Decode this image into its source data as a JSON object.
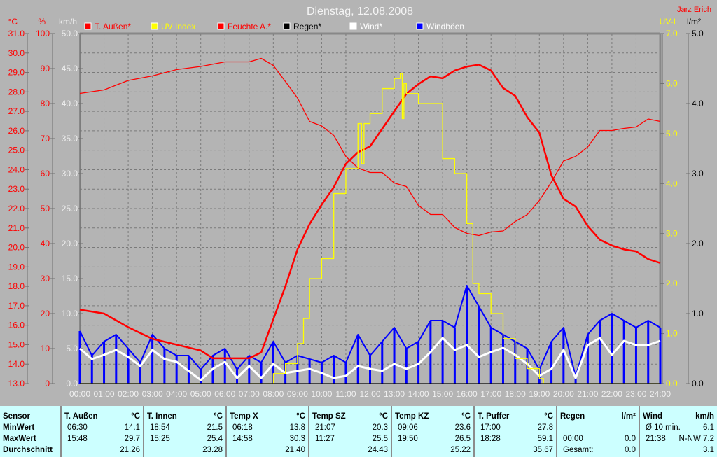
{
  "header": {
    "title": "Dienstag, 12.08.2008",
    "author": "Jarz Erich"
  },
  "legend": [
    {
      "label": "T. Außen*",
      "color": "#ff0000",
      "text_color": "#ff0000"
    },
    {
      "label": "UV Index",
      "color": "#ffff00",
      "text_color": "#ffff00"
    },
    {
      "label": "Feuchte A.*",
      "color": "#ff0000",
      "text_color": "#ff0000"
    },
    {
      "label": "Regen*",
      "color": "#000000",
      "text_color": "#000000"
    },
    {
      "label": "Wind*",
      "color": "#ffffff",
      "text_color": "#ffffff"
    },
    {
      "label": "Windböen",
      "color": "#0000ff",
      "text_color": "#ffffff"
    }
  ],
  "chart_data": {
    "type": "line",
    "title": "Dienstag, 12.08.2008",
    "grid": true,
    "legend_position": "top",
    "x_ticks": [
      "00:00",
      "01:00",
      "02:00",
      "03:00",
      "04:00",
      "05:00",
      "06:00",
      "07:00",
      "08:00",
      "09:00",
      "10:00",
      "11:00",
      "12:00",
      "13:00",
      "14:00",
      "15:00",
      "16:00",
      "17:00",
      "18:00",
      "19:00",
      "20:00",
      "21:00",
      "22:00",
      "23:00",
      "24:00"
    ],
    "axes": {
      "temp": {
        "unit": "°C",
        "range": [
          13,
          31
        ],
        "step": 1,
        "color": "#ff0000",
        "ticks": [
          "13.0",
          "14.0",
          "15.0",
          "16.0",
          "17.0",
          "18.0",
          "19.0",
          "20.0",
          "21.0",
          "22.0",
          "23.0",
          "24.0",
          "25.0",
          "26.0",
          "27.0",
          "28.0",
          "29.0",
          "30.0",
          "31.0"
        ]
      },
      "humidity": {
        "unit": "%",
        "range": [
          0,
          100
        ],
        "step": 10,
        "color": "#ff0000",
        "ticks": [
          "0",
          "10",
          "20",
          "30",
          "40",
          "50",
          "60",
          "70",
          "80",
          "90",
          "100"
        ]
      },
      "wind": {
        "unit": "km/h",
        "range": [
          0,
          50
        ],
        "step": 5,
        "color": "#f0f0f0",
        "ticks": [
          "0.0",
          "5.0",
          "10.0",
          "15.0",
          "20.0",
          "25.0",
          "30.0",
          "35.0",
          "40.0",
          "45.0",
          "50.0"
        ]
      },
      "uv": {
        "unit": "UV-I",
        "range": [
          0,
          7
        ],
        "step": 1,
        "color": "#ffff00",
        "ticks": [
          "0.0",
          "1.0",
          "2.0",
          "3.0",
          "4.0",
          "5.0",
          "6.0",
          "7.0"
        ]
      },
      "rain": {
        "unit": "l/m²",
        "range": [
          0,
          5
        ],
        "step": 1,
        "color": "#000000",
        "ticks": [
          "0.0",
          "1.0",
          "2.0",
          "3.0",
          "4.0",
          "5.0"
        ]
      }
    },
    "series": [
      {
        "name": "T. Außen*",
        "axis": "temp",
        "color": "#ff0000",
        "x": [
          0,
          1,
          2,
          3,
          4,
          5,
          5.5,
          6,
          7,
          7.5,
          8,
          8.5,
          9,
          9.5,
          10,
          10.5,
          11,
          11.5,
          12,
          12.5,
          13,
          13.5,
          14,
          14.5,
          15,
          15.5,
          16,
          16.5,
          17,
          17.5,
          18,
          18.5,
          19,
          19.5,
          20,
          20.5,
          21,
          21.5,
          22,
          22.5,
          23,
          23.5,
          24
        ],
        "y": [
          16.8,
          16.6,
          15.9,
          15.3,
          15.0,
          14.7,
          14.3,
          14.3,
          14.3,
          14.6,
          16.3,
          18.0,
          19.9,
          21.2,
          22.2,
          23.1,
          24.3,
          24.9,
          25.2,
          26.1,
          27.0,
          27.9,
          28.4,
          28.8,
          28.7,
          29.1,
          29.3,
          29.4,
          29.1,
          28.2,
          27.8,
          26.7,
          25.9,
          23.7,
          22.5,
          22.1,
          21.1,
          20.4,
          20.1,
          19.9,
          19.8,
          19.4,
          19.2
        ]
      },
      {
        "name": "UV Index",
        "axis": "uv",
        "color": "#ffff00",
        "step": true,
        "x": [
          0,
          7.5,
          8,
          8.5,
          9,
          9.25,
          9.5,
          10,
          10.5,
          11,
          11.5,
          11.65,
          11.75,
          12,
          12.5,
          13,
          13.25,
          13.33,
          13.4,
          13.5,
          14,
          14.5,
          15,
          15.5,
          16,
          16.25,
          16.5,
          17,
          17.5,
          18,
          18.5,
          19,
          19.17,
          24
        ],
        "y": [
          0,
          0,
          0.2,
          0.4,
          0.8,
          1.3,
          2.1,
          2.5,
          3.8,
          4.3,
          5.2,
          4.4,
          5.2,
          5.4,
          5.9,
          6.1,
          6.2,
          5.3,
          6.0,
          5.8,
          5.6,
          5.6,
          4.5,
          4.2,
          3.2,
          2.0,
          1.8,
          1.4,
          0.9,
          0.5,
          0.3,
          0.1,
          0,
          0
        ]
      },
      {
        "name": "Feuchte A.*",
        "axis": "humidity",
        "color": "#ff0000",
        "x": [
          0,
          1,
          2,
          3,
          4,
          5,
          6,
          7,
          7.5,
          8,
          8.5,
          9,
          9.5,
          10,
          10.5,
          11,
          11.5,
          12,
          12.5,
          13,
          13.5,
          14,
          14.5,
          15,
          15.5,
          16,
          16.5,
          17,
          17.5,
          18,
          18.5,
          19,
          19.5,
          20,
          20.5,
          21,
          21.5,
          22,
          22.5,
          23,
          23.5,
          24
        ],
        "y": [
          82.9,
          83.9,
          86.6,
          87.9,
          89.7,
          90.6,
          91.9,
          91.9,
          92.9,
          90.9,
          86.3,
          81.6,
          74.9,
          73.6,
          70.9,
          64.9,
          61.6,
          60.3,
          60.3,
          57.3,
          56.3,
          50.9,
          48.3,
          48.3,
          44.6,
          42.9,
          42.3,
          43.3,
          43.6,
          46.3,
          48.3,
          52.3,
          57.6,
          63.6,
          64.9,
          67.6,
          72.3,
          72.3,
          72.9,
          73.3,
          75.6,
          74.9
        ]
      },
      {
        "name": "Regen*",
        "axis": "rain",
        "color": "#000000",
        "x": [
          0,
          24
        ],
        "y": [
          0,
          0
        ]
      },
      {
        "name": "Wind*",
        "axis": "wind",
        "color": "#ffffff",
        "x": [
          0,
          0.5,
          1,
          1.5,
          2,
          2.5,
          3,
          3.5,
          4,
          4.5,
          5,
          5.5,
          6,
          6.5,
          7,
          7.5,
          8,
          8.5,
          9,
          9.5,
          10,
          10.5,
          11,
          11.5,
          12,
          12.5,
          13,
          13.5,
          14,
          14.5,
          15,
          15.5,
          16,
          16.5,
          17,
          17.5,
          18,
          18.5,
          19,
          19.5,
          20,
          20.5,
          21,
          21.5,
          22,
          22.5,
          23,
          23.5,
          24
        ],
        "y": [
          5.0,
          3.5,
          4.1,
          4.8,
          3.8,
          2.5,
          4.8,
          3.5,
          3.1,
          1.8,
          0.5,
          2.1,
          3.1,
          0.8,
          2.5,
          0.8,
          2.8,
          1.5,
          1.8,
          2.1,
          1.5,
          0.8,
          1.1,
          2.5,
          2.1,
          1.8,
          2.8,
          2.1,
          2.8,
          4.5,
          6.5,
          4.8,
          5.5,
          3.8,
          4.5,
          5.1,
          4.1,
          2.8,
          1.1,
          2.1,
          4.8,
          0.8,
          5.5,
          6.5,
          4.1,
          6.1,
          5.5,
          5.5,
          6.1
        ]
      },
      {
        "name": "Windböen",
        "axis": "wind",
        "color": "#0000ff",
        "x": [
          0,
          0.5,
          1,
          1.5,
          2,
          2.5,
          3,
          3.5,
          4,
          4.5,
          5,
          5.5,
          6,
          6.5,
          7,
          7.5,
          8,
          8.5,
          9,
          9.5,
          10,
          10.5,
          11,
          11.5,
          12,
          12.5,
          13,
          13.5,
          14,
          14.5,
          15,
          15.5,
          16,
          16.5,
          17,
          17.5,
          18,
          18.5,
          19,
          19.5,
          20,
          20.5,
          21,
          21.5,
          22,
          22.5,
          23,
          23.5,
          24
        ],
        "y": [
          7.5,
          4,
          6,
          7,
          5,
          3,
          7,
          5,
          4,
          4,
          2,
          4,
          5,
          2,
          4,
          3,
          6,
          3,
          4,
          3.5,
          3,
          4,
          3,
          7,
          4,
          6,
          8,
          5,
          6,
          9,
          9,
          8,
          14,
          11,
          8,
          7,
          6,
          5,
          2,
          6,
          8,
          1,
          7,
          9,
          10,
          9,
          8,
          9,
          8
        ]
      }
    ]
  },
  "table": {
    "label_column": {
      "header": "Sensor",
      "rows": [
        "MinWert",
        "MaxWert",
        "Durchschnitt"
      ]
    },
    "columns": [
      {
        "name": "T. Außen",
        "unit": "°C",
        "rows": [
          [
            "06:30",
            "14.1"
          ],
          [
            "15:48",
            "29.7"
          ],
          [
            "",
            "21.26"
          ]
        ]
      },
      {
        "name": "T. Innen",
        "unit": "°C",
        "rows": [
          [
            "18:54",
            "21.5"
          ],
          [
            "15:25",
            "25.4"
          ],
          [
            "",
            "23.28"
          ]
        ]
      },
      {
        "name": "Temp X",
        "unit": "°C",
        "rows": [
          [
            "06:18",
            "13.8"
          ],
          [
            "14:58",
            "30.3"
          ],
          [
            "",
            "21.40"
          ]
        ]
      },
      {
        "name": "Temp SZ",
        "unit": "°C",
        "rows": [
          [
            "21:07",
            "20.3"
          ],
          [
            "11:27",
            "25.5"
          ],
          [
            "",
            "24.43"
          ]
        ]
      },
      {
        "name": "Temp KZ",
        "unit": "°C",
        "rows": [
          [
            "09:06",
            "23.6"
          ],
          [
            "19:50",
            "26.5"
          ],
          [
            "",
            "25.22"
          ]
        ]
      },
      {
        "name": "T. Puffer",
        "unit": "°C",
        "rows": [
          [
            "17:00",
            "27.8"
          ],
          [
            "18:28",
            "59.1"
          ],
          [
            "",
            "35.67"
          ]
        ]
      },
      {
        "name": "Regen",
        "unit": "l/m²",
        "rows": [
          [
            "",
            ""
          ],
          [
            "00:00",
            "0.0"
          ],
          [
            "Gesamt:",
            "0.0"
          ]
        ]
      },
      {
        "name": "Wind",
        "unit": "km/h",
        "rows": [
          [
            "Ø 10 min.",
            "6.1"
          ],
          [
            "21:38",
            "N-NW 7.2"
          ],
          [
            "",
            "3.1"
          ]
        ]
      }
    ]
  }
}
